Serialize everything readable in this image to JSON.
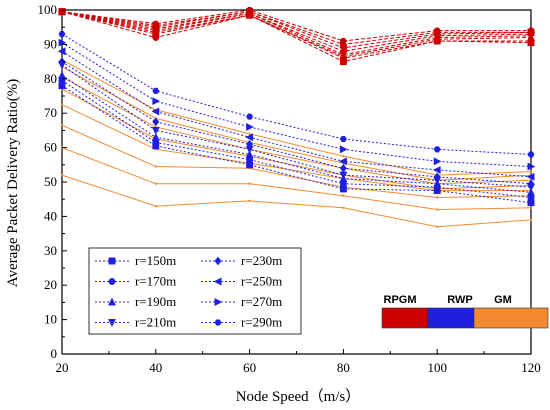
{
  "chart_data": {
    "type": "line",
    "xlabel": "Node Speed（m/s）",
    "ylabel": "Average Packet Delivery Ratio(%)",
    "xlim": [
      20,
      120
    ],
    "ylim": [
      0,
      100
    ],
    "xticks": [
      "20",
      "40",
      "60",
      "80",
      "100",
      "120"
    ],
    "yticks": [
      "0",
      "10",
      "20",
      "30",
      "40",
      "50",
      "60",
      "70",
      "80",
      "90",
      "100"
    ],
    "x": [
      20,
      40,
      60,
      80,
      100,
      120
    ],
    "grid": false,
    "legend": {
      "placement": "bottom-left",
      "entries": [
        {
          "label": "r=150m",
          "marker": "square"
        },
        {
          "label": "r=170m",
          "marker": "circle"
        },
        {
          "label": "r=190m",
          "marker": "triangle-up"
        },
        {
          "label": "r=210m",
          "marker": "triangle-down"
        },
        {
          "label": "r=230m",
          "marker": "diamond"
        },
        {
          "label": "r=250m",
          "marker": "triangle-left"
        },
        {
          "label": "r=270m",
          "marker": "triangle-right"
        },
        {
          "label": "r=290m",
          "marker": "hexagon"
        }
      ]
    },
    "protocol_legend": [
      {
        "label": "RPGM",
        "color": "#cc0000"
      },
      {
        "label": "RWP",
        "color": "#1f1fe0"
      },
      {
        "label": "GM",
        "color": "#f28b30"
      }
    ],
    "series": [
      {
        "group": "RPGM",
        "radius": "r=150m",
        "marker": "square",
        "values": [
          99.5,
          93,
          98.5,
          85,
          91,
          90.5
        ]
      },
      {
        "group": "RPGM",
        "radius": "r=170m",
        "marker": "circle",
        "values": [
          99.5,
          92,
          98.5,
          86,
          91,
          91
        ]
      },
      {
        "group": "RPGM",
        "radius": "r=190m",
        "marker": "triangle-up",
        "values": [
          99.5,
          93.5,
          98.5,
          86.5,
          91.5,
          92
        ]
      },
      {
        "group": "RPGM",
        "radius": "r=210m",
        "marker": "triangle-down",
        "values": [
          99.5,
          94,
          99,
          87,
          92,
          92.5
        ]
      },
      {
        "group": "RPGM",
        "radius": "r=230m",
        "marker": "diamond",
        "values": [
          99.5,
          94.5,
          99,
          88,
          92.5,
          93
        ]
      },
      {
        "group": "RPGM",
        "radius": "r=250m",
        "marker": "triangle-left",
        "values": [
          99.5,
          95,
          99.5,
          89,
          93,
          93.5
        ]
      },
      {
        "group": "RPGM",
        "radius": "r=270m",
        "marker": "triangle-right",
        "values": [
          99.5,
          95.5,
          99.5,
          90,
          93.5,
          93.5
        ]
      },
      {
        "group": "RPGM",
        "radius": "r=290m",
        "marker": "hexagon",
        "values": [
          99.5,
          96,
          100,
          91,
          94,
          94
        ]
      },
      {
        "group": "RWP",
        "radius": "r=150m",
        "marker": "square",
        "values": [
          78,
          60.5,
          55,
          48,
          47.5,
          44
        ]
      },
      {
        "group": "RWP",
        "radius": "r=170m",
        "marker": "circle",
        "values": [
          79.5,
          61.5,
          56.5,
          49.5,
          48.5,
          45.5
        ]
      },
      {
        "group": "RWP",
        "radius": "r=190m",
        "marker": "triangle-up",
        "values": [
          81,
          63,
          58,
          51,
          49.5,
          47
        ]
      },
      {
        "group": "RWP",
        "radius": "r=210m",
        "marker": "triangle-down",
        "values": [
          84,
          65,
          59.5,
          52,
          50.5,
          48.5
        ]
      },
      {
        "group": "RWP",
        "radius": "r=230m",
        "marker": "diamond",
        "values": [
          85,
          67.5,
          61,
          54,
          51.5,
          49.5
        ]
      },
      {
        "group": "RWP",
        "radius": "r=250m",
        "marker": "triangle-left",
        "values": [
          88,
          70.5,
          63,
          56,
          53.5,
          51.5
        ]
      },
      {
        "group": "RWP",
        "radius": "r=270m",
        "marker": "triangle-right",
        "values": [
          90.5,
          73.5,
          66,
          59.5,
          56,
          54.5
        ]
      },
      {
        "group": "RWP",
        "radius": "r=290m",
        "marker": "hexagon",
        "values": [
          93,
          76.5,
          69,
          62.5,
          59.5,
          58
        ]
      },
      {
        "group": "GM",
        "radius": "r=150m",
        "marker": "none",
        "values": [
          52,
          43,
          44.5,
          42.5,
          37,
          39
        ]
      },
      {
        "group": "GM",
        "radius": "r=170m",
        "marker": "none",
        "values": [
          60,
          49.5,
          49.5,
          46,
          42,
          42.5
        ]
      },
      {
        "group": "GM",
        "radius": "r=190m",
        "marker": "none",
        "values": [
          66.5,
          54.5,
          54,
          48.5,
          45.5,
          46
        ]
      },
      {
        "group": "GM",
        "radius": "r=210m",
        "marker": "none",
        "values": [
          72.5,
          59.5,
          55.5,
          51,
          47.5,
          47.5
        ]
      },
      {
        "group": "GM",
        "radius": "r=230m",
        "marker": "none",
        "values": [
          77,
          62.5,
          57.5,
          52,
          48,
          49
        ]
      },
      {
        "group": "GM",
        "radius": "r=250m",
        "marker": "none",
        "values": [
          80.5,
          66,
          59.5,
          54,
          49.5,
          50.5
        ]
      },
      {
        "group": "GM",
        "radius": "r=270m",
        "marker": "none",
        "values": [
          83.5,
          68.5,
          61.5,
          55.5,
          50.5,
          52
        ]
      },
      {
        "group": "GM",
        "radius": "r=290m",
        "marker": "none",
        "values": [
          85.5,
          71,
          64,
          57.5,
          52,
          53
        ]
      }
    ]
  }
}
